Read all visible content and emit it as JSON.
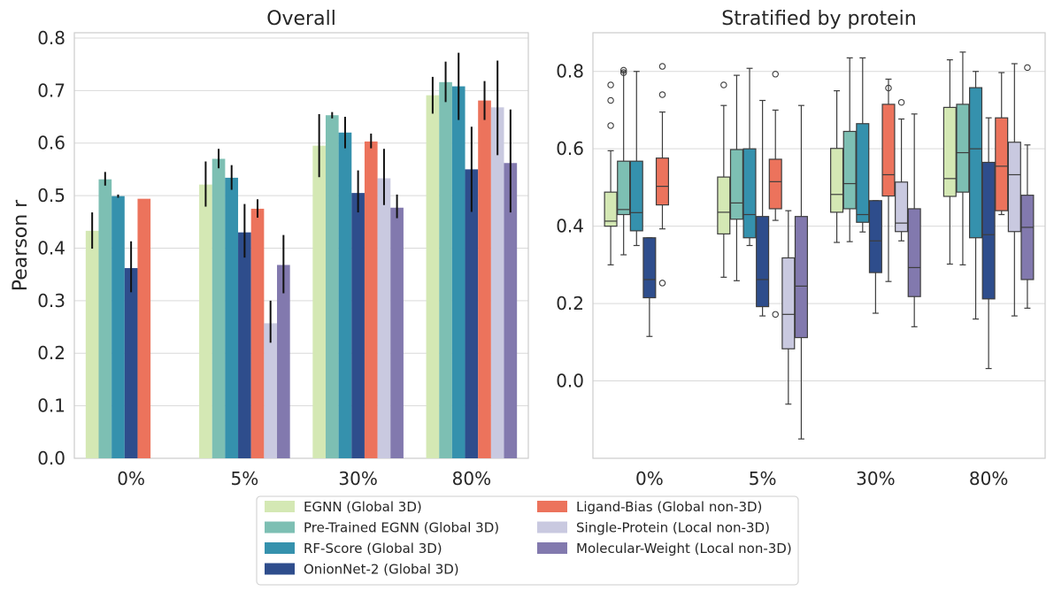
{
  "palette": {
    "EGNN (Global 3D)": "#d4e8b4",
    "Pre-Trained EGNN (Global 3D)": "#7dbfb3",
    "RF-Score (Global 3D)": "#3591ad",
    "OnionNet-2 (Global 3D)": "#2e4d8c",
    "Ligand-Bias (Global non-3D)": "#ec735c",
    "Single-Protein (Local non-3D)": "#c9c9e0",
    "Molecular-Weight (Local non-3D)": "#8279ae"
  },
  "chart_data": [
    {
      "type": "bar",
      "title": "Overall",
      "xlabel": "",
      "ylabel": "Pearson r",
      "ylim": [
        0,
        0.81
      ],
      "yticks": [
        "0.0",
        "0.1",
        "0.2",
        "0.3",
        "0.4",
        "0.5",
        "0.6",
        "0.7",
        "0.8"
      ],
      "categories": [
        "0%",
        "5%",
        "30%",
        "80%"
      ],
      "grid": true,
      "series": [
        {
          "name": "EGNN (Global 3D)",
          "values": [
            0.433,
            0.521,
            0.595,
            0.691
          ],
          "err_low": [
            0.399,
            0.479,
            0.535,
            0.656
          ],
          "err_high": [
            0.468,
            0.565,
            0.655,
            0.726
          ]
        },
        {
          "name": "Pre-Trained EGNN (Global 3D)",
          "values": [
            0.531,
            0.57,
            0.653,
            0.716
          ],
          "err_low": [
            0.519,
            0.552,
            0.647,
            0.678
          ],
          "err_high": [
            0.545,
            0.589,
            0.659,
            0.755
          ]
        },
        {
          "name": "RF-Score (Global 3D)",
          "values": [
            0.499,
            0.534,
            0.62,
            0.708
          ],
          "err_low": [
            0.496,
            0.511,
            0.59,
            0.644
          ],
          "err_high": [
            0.502,
            0.558,
            0.65,
            0.772
          ]
        },
        {
          "name": "OnionNet-2 (Global 3D)",
          "values": [
            0.362,
            0.43,
            0.505,
            0.55
          ],
          "err_low": [
            0.316,
            0.382,
            0.468,
            0.469
          ],
          "err_high": [
            0.413,
            0.484,
            0.548,
            0.631
          ]
        },
        {
          "name": "Ligand-Bias (Global non-3D)",
          "values": [
            0.494,
            0.475,
            0.603,
            0.681
          ],
          "err_low": [
            0.494,
            0.458,
            0.59,
            0.644
          ],
          "err_high": [
            0.494,
            0.493,
            0.618,
            0.718
          ]
        },
        {
          "name": "Single-Protein (Local non-3D)",
          "values": [
            null,
            0.257,
            0.533,
            0.668
          ],
          "err_low": [
            null,
            0.22,
            0.482,
            0.577
          ],
          "err_high": [
            null,
            0.3,
            0.589,
            0.757
          ]
        },
        {
          "name": "Molecular-Weight (Local non-3D)",
          "values": [
            null,
            0.368,
            0.477,
            0.562
          ],
          "err_low": [
            null,
            0.314,
            0.457,
            0.468
          ],
          "err_high": [
            null,
            0.425,
            0.502,
            0.664
          ]
        }
      ]
    },
    {
      "type": "box",
      "title": "Stratified by protein",
      "xlabel": "",
      "ylabel": "",
      "ylim": [
        -0.2,
        0.9
      ],
      "yticks": [
        "0.0",
        "0.2",
        "0.4",
        "0.6",
        "0.8"
      ],
      "categories": [
        "0%",
        "5%",
        "30%",
        "80%"
      ],
      "grid": true,
      "series": [
        {
          "name": "EGNN (Global 3D)",
          "boxes": [
            {
              "whislo": 0.3,
              "q1": 0.4,
              "med": 0.413,
              "q3": 0.488,
              "whishi": 0.595,
              "fliers": [
                0.66,
                0.725,
                0.765
              ]
            },
            {
              "whislo": 0.268,
              "q1": 0.38,
              "med": 0.436,
              "q3": 0.527,
              "whishi": 0.712,
              "fliers": [
                0.765
              ]
            },
            {
              "whislo": 0.358,
              "q1": 0.436,
              "med": 0.482,
              "q3": 0.601,
              "whishi": 0.75,
              "fliers": []
            },
            {
              "whislo": 0.302,
              "q1": 0.477,
              "med": 0.523,
              "q3": 0.707,
              "whishi": 0.83,
              "fliers": []
            }
          ]
        },
        {
          "name": "Pre-Trained EGNN (Global 3D)",
          "boxes": [
            {
              "whislo": 0.326,
              "q1": 0.43,
              "med": 0.443,
              "q3": 0.568,
              "whishi": 0.8,
              "fliers": [
                0.797,
                0.803
              ]
            },
            {
              "whislo": 0.259,
              "q1": 0.418,
              "med": 0.46,
              "q3": 0.598,
              "whishi": 0.79,
              "fliers": []
            },
            {
              "whislo": 0.36,
              "q1": 0.445,
              "med": 0.51,
              "q3": 0.645,
              "whishi": 0.835,
              "fliers": []
            },
            {
              "whislo": 0.3,
              "q1": 0.488,
              "med": 0.59,
              "q3": 0.715,
              "whishi": 0.85,
              "fliers": []
            }
          ]
        },
        {
          "name": "RF-Score (Global 3D)",
          "boxes": [
            {
              "whislo": 0.35,
              "q1": 0.388,
              "med": 0.435,
              "q3": 0.568,
              "whishi": 0.8,
              "fliers": []
            },
            {
              "whislo": 0.35,
              "q1": 0.37,
              "med": 0.43,
              "q3": 0.6,
              "whishi": 0.808,
              "fliers": []
            },
            {
              "whislo": 0.385,
              "q1": 0.41,
              "med": 0.43,
              "q3": 0.665,
              "whishi": 0.835,
              "fliers": []
            },
            {
              "whislo": 0.16,
              "q1": 0.37,
              "med": 0.6,
              "q3": 0.758,
              "whishi": 0.8,
              "fliers": []
            }
          ]
        },
        {
          "name": "OnionNet-2 (Global 3D)",
          "boxes": [
            {
              "whislo": 0.115,
              "q1": 0.215,
              "med": 0.262,
              "q3": 0.37,
              "whishi": 0.37,
              "fliers": []
            },
            {
              "whislo": 0.168,
              "q1": 0.192,
              "med": 0.262,
              "q3": 0.425,
              "whishi": 0.725,
              "fliers": []
            },
            {
              "whislo": 0.175,
              "q1": 0.28,
              "med": 0.362,
              "q3": 0.466,
              "whishi": 0.466,
              "fliers": []
            },
            {
              "whislo": 0.032,
              "q1": 0.212,
              "med": 0.378,
              "q3": 0.565,
              "whishi": 0.68,
              "fliers": []
            }
          ]
        },
        {
          "name": "Ligand-Bias (Global non-3D)",
          "boxes": [
            {
              "whislo": 0.393,
              "q1": 0.455,
              "med": 0.503,
              "q3": 0.576,
              "whishi": 0.695,
              "fliers": [
                0.253,
                0.74,
                0.813
              ]
            },
            {
              "whislo": 0.415,
              "q1": 0.445,
              "med": 0.515,
              "q3": 0.573,
              "whishi": 0.7,
              "fliers": [
                0.172,
                0.793
              ]
            },
            {
              "whislo": 0.257,
              "q1": 0.478,
              "med": 0.533,
              "q3": 0.715,
              "whishi": 0.78,
              "fliers": [
                0.757
              ]
            },
            {
              "whislo": 0.43,
              "q1": 0.44,
              "med": 0.555,
              "q3": 0.68,
              "whishi": 0.797,
              "fliers": []
            }
          ]
        },
        {
          "name": "Single-Protein (Local non-3D)",
          "boxes": [
            null,
            {
              "whislo": -0.06,
              "q1": 0.083,
              "med": 0.172,
              "q3": 0.318,
              "whishi": 0.44,
              "fliers": []
            },
            {
              "whislo": 0.362,
              "q1": 0.386,
              "med": 0.408,
              "q3": 0.514,
              "whishi": 0.677,
              "fliers": [
                0.72
              ]
            },
            {
              "whislo": 0.168,
              "q1": 0.386,
              "med": 0.533,
              "q3": 0.617,
              "whishi": 0.82,
              "fliers": []
            }
          ]
        },
        {
          "name": "Molecular-Weight (Local non-3D)",
          "boxes": [
            null,
            {
              "whislo": -0.15,
              "q1": 0.112,
              "med": 0.245,
              "q3": 0.425,
              "whishi": 0.712,
              "fliers": []
            },
            {
              "whislo": 0.14,
              "q1": 0.218,
              "med": 0.293,
              "q3": 0.445,
              "whishi": 0.69,
              "fliers": []
            },
            {
              "whislo": 0.188,
              "q1": 0.262,
              "med": 0.397,
              "q3": 0.48,
              "whishi": 0.61,
              "fliers": [
                0.81
              ]
            }
          ]
        }
      ]
    }
  ],
  "legend": [
    "EGNN (Global 3D)",
    "Pre-Trained EGNN (Global 3D)",
    "RF-Score (Global 3D)",
    "OnionNet-2 (Global 3D)",
    "Ligand-Bias (Global non-3D)",
    "Single-Protein (Local non-3D)",
    "Molecular-Weight (Local non-3D)"
  ]
}
